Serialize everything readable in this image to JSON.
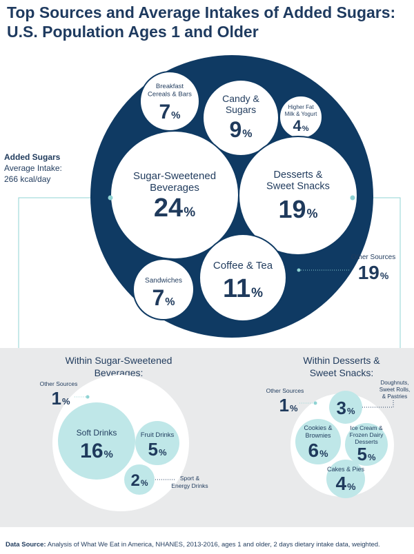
{
  "title": "Top Sources and Average Intakes of Added Sugars: U.S. Population Ages 1 and Older",
  "intro": {
    "heading": "Added Sugars",
    "line1": "Average Intake:",
    "line2": "266 kcal/day"
  },
  "source": {
    "label": "Data Source:",
    "text": "Analysis of What We Eat in America, NHANES, 2013-2016, ages 1 and older, 2 days dietary intake data, weighted."
  },
  "colors": {
    "navy": "#0f3a63",
    "white": "#ffffff",
    "teal": "#bfe7e8",
    "panel": "#e9eaeb",
    "text": "#1f3a5c",
    "line": "#8fd3d3"
  },
  "chart_data": [
    {
      "type": "bubble",
      "title": "",
      "unit": "%",
      "series": [
        {
          "label": "Breakfast Cereals & Bars",
          "value": 7
        },
        {
          "label": "Candy & Sugars",
          "value": 9
        },
        {
          "label": "Higher Fat Milk & Yogurt",
          "value": 4
        },
        {
          "label": "Sugar-Sweetened Beverages",
          "value": 24
        },
        {
          "label": "Desserts & Sweet Snacks",
          "value": 19
        },
        {
          "label": "Sandwiches",
          "value": 7
        },
        {
          "label": "Coffee & Tea",
          "value": 11
        },
        {
          "label": "Other Sources",
          "value": 19
        }
      ]
    },
    {
      "type": "bubble",
      "title": "Within Sugar-Sweetened Beverages:",
      "unit": "%",
      "series": [
        {
          "label": "Other Sources",
          "value": 1
        },
        {
          "label": "Soft Drinks",
          "value": 16
        },
        {
          "label": "Fruit Drinks",
          "value": 5
        },
        {
          "label": "Sport & Energy Drinks",
          "value": 2
        }
      ]
    },
    {
      "type": "bubble",
      "title": "Within Desserts & Sweet Snacks:",
      "unit": "%",
      "series": [
        {
          "label": "Other Sources",
          "value": 1
        },
        {
          "label": "Doughnuts, Sweet Rolls, & Pastries",
          "value": 3
        },
        {
          "label": "Cookies & Brownies",
          "value": 6
        },
        {
          "label": "Ice Cream & Frozen Dairy Desserts",
          "value": 5
        },
        {
          "label": "Cakes & Pies",
          "value": 4
        }
      ]
    }
  ]
}
